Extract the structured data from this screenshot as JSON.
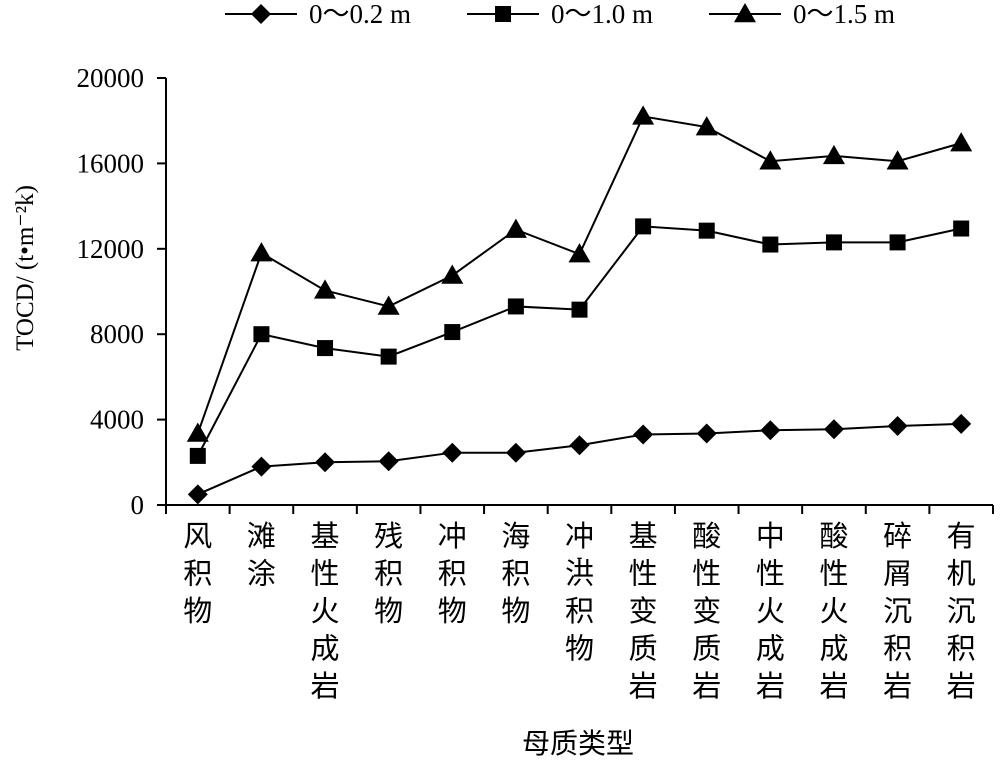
{
  "chart_data": {
    "type": "line",
    "xlabel": "母质类型",
    "ylabel": "TOCD/ (t•m⁻²k)",
    "ylim": [
      0,
      20000
    ],
    "yticks": [
      "0",
      "4000",
      "8000",
      "12000",
      "16000",
      "20000"
    ],
    "categories": [
      "风积物",
      "滩涂",
      "基性火成岩",
      "残积物",
      "冲积物",
      "海积物",
      "冲-洪积物",
      "基性变质岩",
      "酸性变质岩",
      "中性火成岩",
      "酸性火成岩",
      "碎屑沉积岩",
      "有机沉积岩"
    ],
    "legend_position": "top",
    "series": [
      {
        "name": "0～0.2 m",
        "marker": "diamond",
        "values": [
          500,
          1800,
          2000,
          2050,
          2450,
          2450,
          2800,
          3300,
          3350,
          3500,
          3550,
          3700,
          3800
        ]
      },
      {
        "name": "0～1.0 m",
        "marker": "square",
        "values": [
          2300,
          8000,
          7350,
          6950,
          8100,
          9300,
          9150,
          13050,
          12850,
          12200,
          12300,
          12300,
          12950
        ]
      },
      {
        "name": "0～1.5 m",
        "marker": "triangle",
        "values": [
          3350,
          11800,
          10050,
          9300,
          10750,
          12900,
          11750,
          18200,
          17700,
          16100,
          16350,
          16100,
          16950
        ]
      }
    ],
    "grid": false,
    "colors": {
      "line": "#000000",
      "background": "#ffffff"
    }
  }
}
